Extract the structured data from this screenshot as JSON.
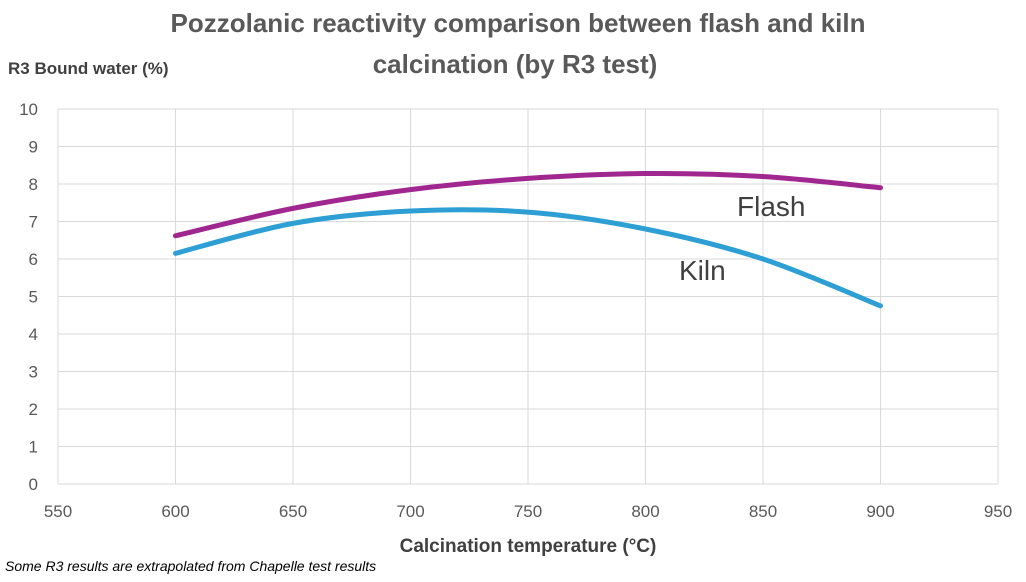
{
  "chart_data": {
    "type": "line",
    "title_lines": [
      "Pozzolanic reactivity comparison between flash and kiln",
      "calcination (by R3 test)"
    ],
    "xlabel": "Calcination temperature (°C)",
    "ylabel": "R3 Bound water (%)",
    "xlim": [
      550,
      950
    ],
    "ylim": [
      0,
      10
    ],
    "xticks": [
      "550",
      "600",
      "650",
      "700",
      "750",
      "800",
      "850",
      "900",
      "950"
    ],
    "yticks": [
      "0",
      "1",
      "2",
      "3",
      "4",
      "5",
      "6",
      "7",
      "8",
      "9",
      "10"
    ],
    "grid": true,
    "series": [
      {
        "name": "Flash",
        "color": "#A0278F",
        "x": [
          600,
          650,
          700,
          750,
          800,
          850,
          900
        ],
        "y": [
          6.62,
          7.35,
          7.85,
          8.15,
          8.28,
          8.2,
          7.9
        ]
      },
      {
        "name": "Kiln",
        "color": "#2E9FD4",
        "x": [
          600,
          650,
          700,
          750,
          800,
          850,
          900
        ],
        "y": [
          6.15,
          6.95,
          7.28,
          7.25,
          6.8,
          6.0,
          4.75
        ]
      }
    ],
    "footnote": "Some R3 results are extrapolated from Chapelle test results"
  }
}
